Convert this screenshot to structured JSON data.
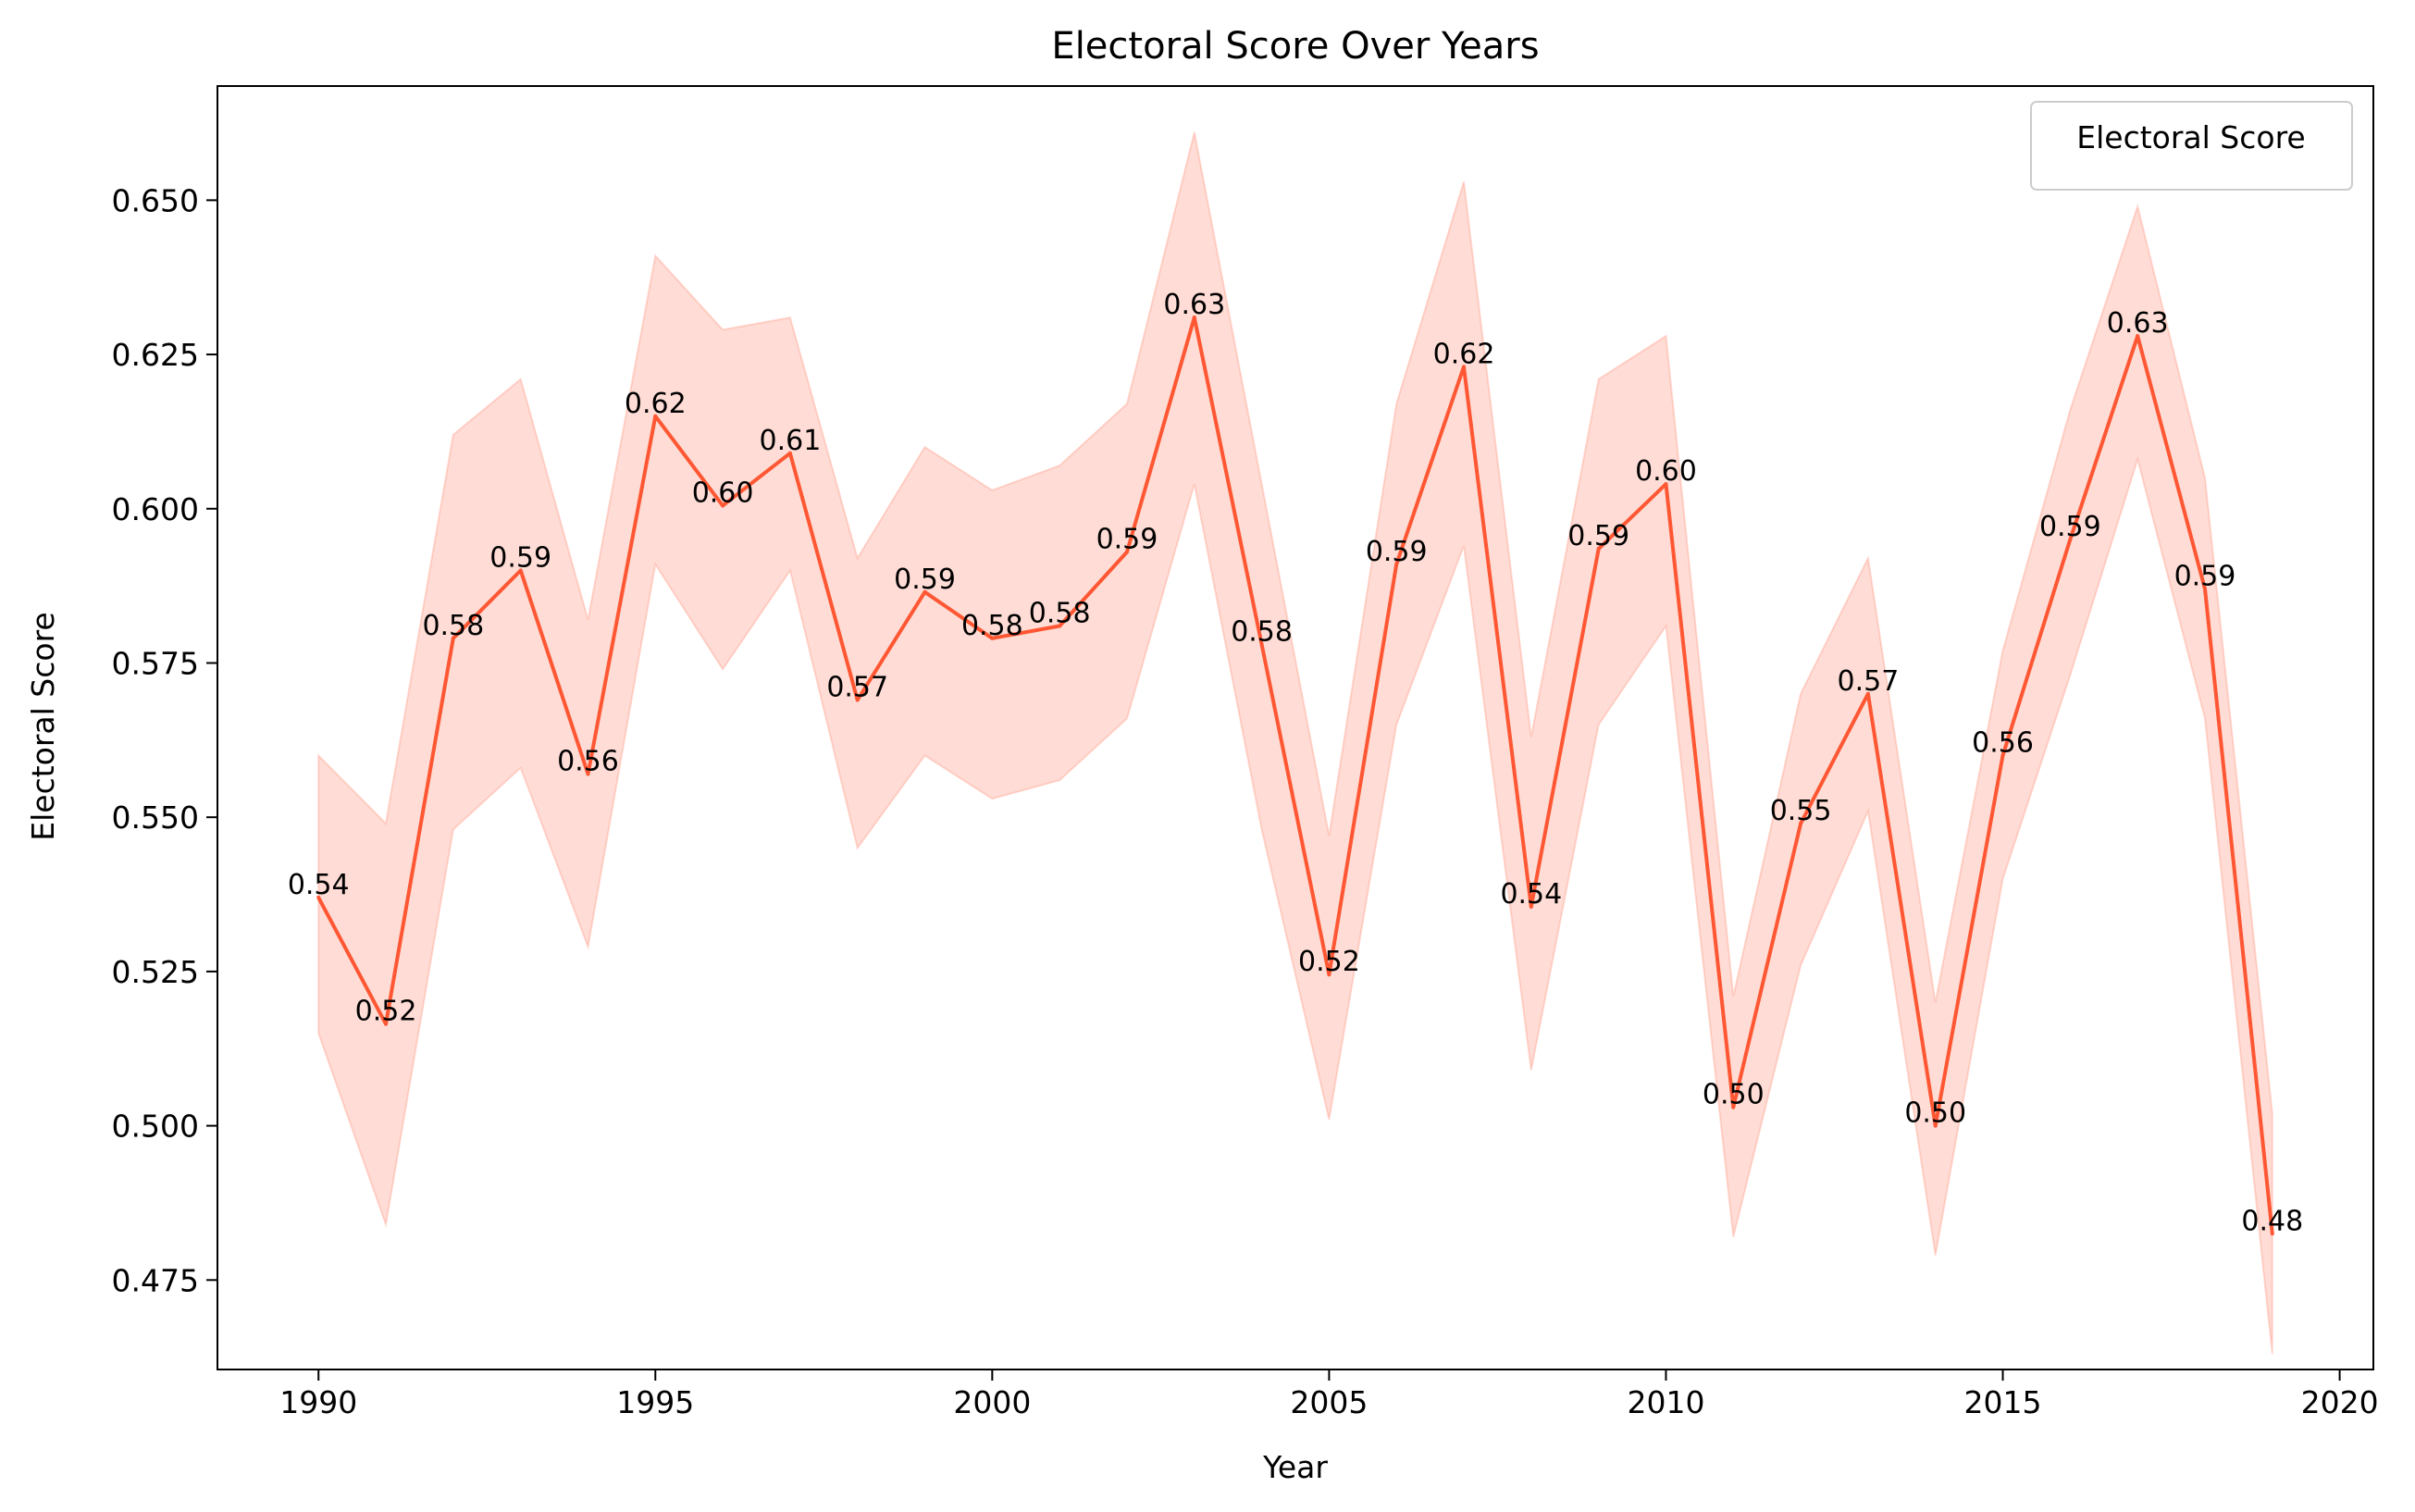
{
  "chart_data": {
    "type": "line",
    "title": "Electoral Score Over Years",
    "xlabel": "Year",
    "ylabel": "Electoral Score",
    "xlim": [
      1988.5,
      2020.5
    ],
    "ylim": [
      0.4605,
      0.6685
    ],
    "xticks": [
      1990,
      1995,
      2000,
      2005,
      2010,
      2015,
      2020
    ],
    "yticks": [
      0.475,
      0.5,
      0.525,
      0.55,
      0.575,
      0.6,
      0.625,
      0.65
    ],
    "ytick_labels": [
      "0.475",
      "0.500",
      "0.525",
      "0.550",
      "0.575",
      "0.600",
      "0.625",
      "0.650"
    ],
    "grid": false,
    "legend": {
      "title": "Electoral Score",
      "position": "upper right"
    },
    "colors": {
      "line": "#ff5733",
      "band": "#ff5733"
    },
    "series": [
      {
        "x": [
          1990,
          1991,
          1992,
          1993,
          1994,
          1995,
          1996,
          1997,
          1998,
          1999,
          2000,
          2001,
          2002,
          2003,
          2004,
          2005,
          2006,
          2007,
          2008,
          2009,
          2010,
          2011,
          2012,
          2013,
          2014,
          2015,
          2016,
          2017,
          2018,
          2019
        ],
        "values": [
          0.537,
          0.5165,
          0.579,
          0.59,
          0.557,
          0.615,
          0.6005,
          0.609,
          0.569,
          0.5865,
          0.579,
          0.581,
          0.593,
          0.631,
          0.578,
          0.5245,
          0.591,
          0.623,
          0.5355,
          0.5935,
          0.604,
          0.503,
          0.549,
          0.57,
          0.5,
          0.56,
          0.595,
          0.628,
          0.587,
          0.4825
        ],
        "lower": [
          0.515,
          0.484,
          0.548,
          0.558,
          0.529,
          0.591,
          0.574,
          0.59,
          0.545,
          0.56,
          0.553,
          0.556,
          0.566,
          0.604,
          0.548,
          0.501,
          0.565,
          0.594,
          0.509,
          0.565,
          0.581,
          0.482,
          0.526,
          0.551,
          0.479,
          0.54,
          0.573,
          0.608,
          0.566,
          0.463
        ],
        "upper": [
          0.56,
          0.549,
          0.612,
          0.621,
          0.582,
          0.641,
          0.629,
          0.631,
          0.592,
          0.61,
          0.603,
          0.607,
          0.617,
          0.661,
          0.604,
          0.547,
          0.617,
          0.653,
          0.563,
          0.621,
          0.628,
          0.521,
          0.57,
          0.592,
          0.52,
          0.577,
          0.616,
          0.649,
          0.605,
          0.502
        ],
        "labels": [
          "0.54",
          "0.52",
          "0.58",
          "0.59",
          "0.56",
          "0.62",
          "0.60",
          "0.61",
          "0.57",
          "0.59",
          "0.58",
          "0.58",
          "0.59",
          "0.63",
          "0.58",
          "0.52",
          "0.59",
          "0.62",
          "0.54",
          "0.59",
          "0.60",
          "0.50",
          "0.55",
          "0.57",
          "0.50",
          "0.56",
          "0.59",
          "0.63",
          "0.59",
          "0.48"
        ]
      }
    ]
  }
}
